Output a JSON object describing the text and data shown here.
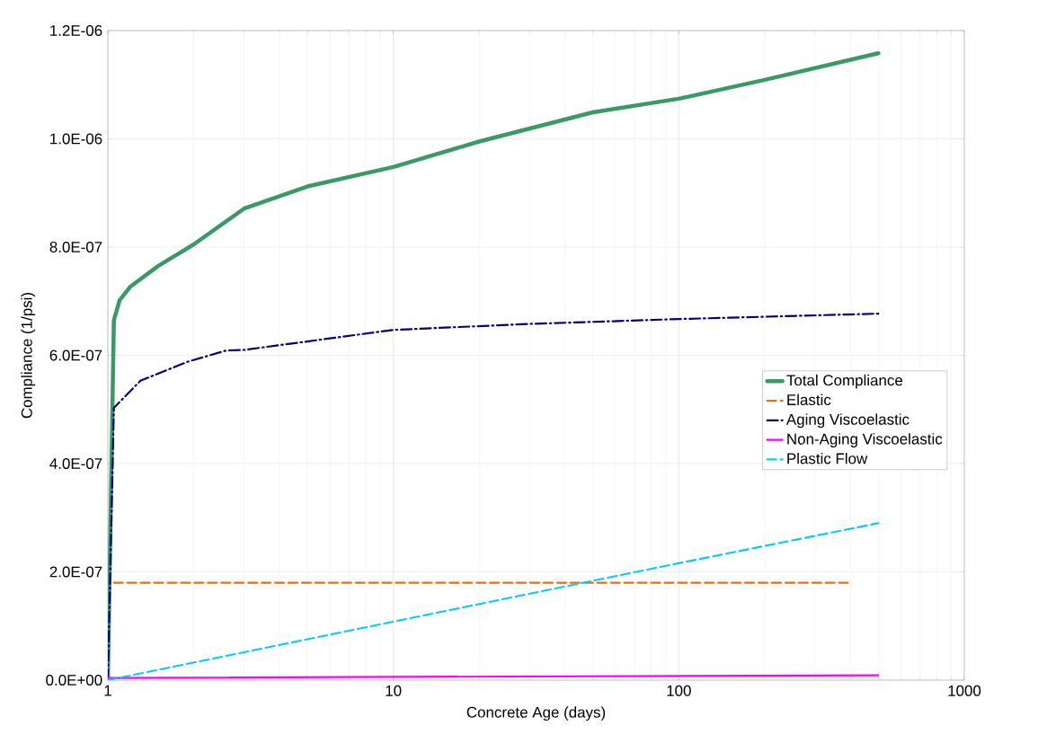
{
  "chart_data": {
    "type": "line",
    "xlabel": "Concrete Age (days)",
    "ylabel": "Compliance (1/psi)",
    "log": "x",
    "grid": true,
    "legend": "right",
    "xlim": [
      1,
      1000
    ],
    "xticks": [
      1,
      10,
      100,
      1000
    ],
    "ylim": [
      0,
      1.2e-06
    ],
    "yticks": [
      {
        "value": 0,
        "label": "0.0E+00"
      },
      {
        "value": 2e-07,
        "label": "2.0E-07"
      },
      {
        "value": 4e-07,
        "label": "4.0E-07"
      },
      {
        "value": 6e-07,
        "label": "6.0E-07"
      },
      {
        "value": 8e-07,
        "label": "8.0E-07"
      },
      {
        "value": 1e-06,
        "label": "1.0E-06"
      },
      {
        "value": 1.2e-06,
        "label": "1.2E-06"
      }
    ],
    "series": [
      {
        "name": "Total Compliance",
        "color": "#3a9a66",
        "line_style": "solid",
        "x": [
          1,
          1.05,
          1.1,
          1.2,
          1.5,
          2,
          3,
          5,
          10,
          20,
          50,
          100,
          200,
          500
        ],
        "values": [
          0,
          6.65e-07,
          7.02e-07,
          7.27e-07,
          7.65e-07,
          8.05e-07,
          8.71e-07,
          9.12e-07,
          9.48e-07,
          9.95e-07,
          1.049e-06,
          1.074e-06,
          1.109e-06,
          1.158e-06
        ]
      },
      {
        "name": "Elastic",
        "color": "#ff6600",
        "line_style": "dashed",
        "x": [
          1.05,
          400
        ],
        "values": [
          1.8e-07,
          1.8e-07
        ]
      },
      {
        "name": "Aging Viscoelastic",
        "color": "#000080",
        "line_style": "dashdot",
        "x": [
          1,
          1.05,
          1.3,
          1.9,
          2.6,
          3,
          10,
          30,
          100,
          500
        ],
        "values": [
          0,
          5.03e-07,
          5.53e-07,
          5.88e-07,
          6.09e-07,
          6.1e-07,
          6.47e-07,
          6.58e-07,
          6.67e-07,
          6.77e-07
        ]
      },
      {
        "name": "Non-Aging Viscoelastic",
        "color": "#ff00ff",
        "line_style": "solid",
        "x": [
          1,
          500
        ],
        "values": [
          4e-09,
          9e-09
        ]
      },
      {
        "name": "Plastic Flow",
        "color": "#00ccff",
        "line_style": "dashed",
        "x": [
          1,
          10,
          100,
          500
        ],
        "values": [
          0,
          1.08e-07,
          2.16e-07,
          2.9e-07
        ]
      }
    ]
  }
}
